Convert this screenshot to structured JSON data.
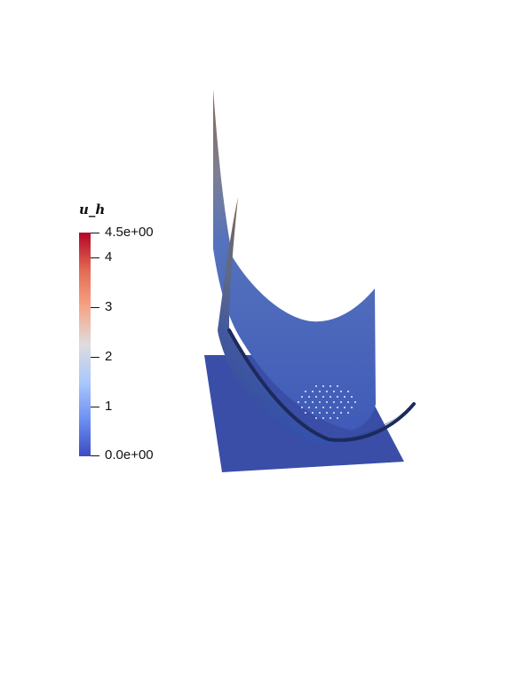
{
  "legend": {
    "title": "u_h",
    "max_label": "4.5e+00",
    "min_label": "0.0e+00",
    "ticks": [
      "4",
      "3",
      "2",
      "1"
    ],
    "range": [
      0,
      4.5
    ],
    "colormap": [
      "#3b4cc0",
      "#6f92f3",
      "#aac7fd",
      "#dddddd",
      "#f6a385",
      "#e36b54",
      "#b40426"
    ]
  },
  "colors": {
    "plane": "#3a4ea8",
    "surface_low": "#3d58b8",
    "surface_high": "#8a6a5c"
  }
}
